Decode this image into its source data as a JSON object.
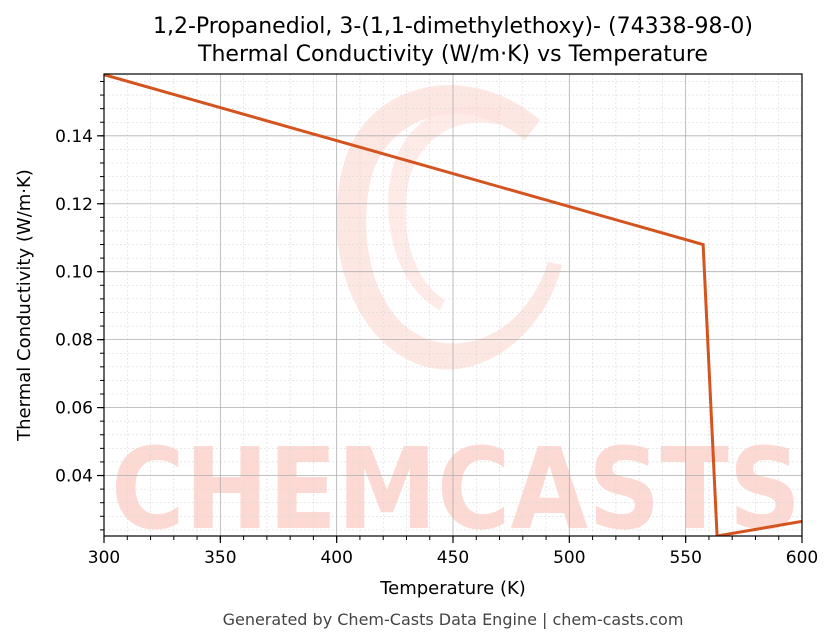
{
  "chart_data": {
    "type": "line",
    "title_line1": "1,2-Propanediol, 3-(1,1-dimethylethoxy)- (74338-98-0)",
    "title_line2": "Thermal Conductivity (W/m·K) vs Temperature",
    "xlabel": "Temperature (K)",
    "ylabel": "Thermal Conductivity (W/m·K)",
    "xlim": [
      300,
      600
    ],
    "ylim": [
      0.0222,
      0.1582
    ],
    "x_ticks": [
      300,
      350,
      400,
      450,
      500,
      550,
      600
    ],
    "x_tick_labels": [
      "300",
      "350",
      "400",
      "450",
      "500",
      "550",
      "600"
    ],
    "y_ticks": [
      0.04,
      0.06,
      0.08,
      0.1,
      0.12,
      0.14
    ],
    "y_tick_labels": [
      "0.04",
      "0.06",
      "0.08",
      "0.10",
      "0.12",
      "0.14"
    ],
    "grid": true,
    "series": [
      {
        "color": "#d4541f",
        "x": [
          300,
          557.5,
          563.5,
          600
        ],
        "y": [
          0.158,
          0.108,
          0.0222,
          0.0265
        ]
      }
    ]
  },
  "watermark": {
    "text": "CHEMCASTS",
    "color": "#fcd9d3"
  },
  "footer": "Generated by Chem-Casts Data Engine | chem-casts.com"
}
